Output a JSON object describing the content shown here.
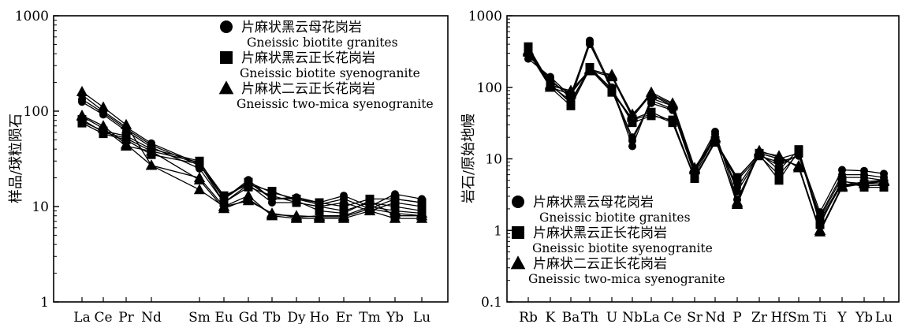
{
  "chart_data": [
    {
      "type": "line",
      "ylabel": "样品/球粒陨石",
      "yscale": "log",
      "ylim": [
        1,
        1000
      ],
      "yticks": [
        1,
        10,
        100,
        1000
      ],
      "categories": [
        "La",
        "Ce",
        "Pr",
        "Nd",
        "Sm",
        "Eu",
        "Gd",
        "Tb",
        "Dy",
        "Ho",
        "Er",
        "Tm",
        "Yb",
        "Lu"
      ],
      "grid": false,
      "legend_position": "top-right",
      "legend": [
        {
          "marker": "circle",
          "cn": "片麻状黑云母花岗岩",
          "en": "Gneissic biotite granites"
        },
        {
          "marker": "square",
          "cn": "片麻状黑云正长花岗岩",
          "en": "Gneissic biotite syenogranite"
        },
        {
          "marker": "triangle",
          "cn": "片麻状二云正长花岗岩",
          "en": "Gneissic two-mica syenogranite"
        }
      ],
      "series": [
        {
          "marker": "circle",
          "values": [
            148,
            100,
            68,
            46,
            28,
            12,
            19,
            12,
            12.5,
            11,
            13,
            10,
            13.5,
            12
          ]
        },
        {
          "marker": "circle",
          "values": [
            125,
            92,
            62,
            42,
            25,
            11,
            17,
            11,
            11,
            10,
            11,
            9,
            11,
            10
          ]
        },
        {
          "marker": "circle",
          "values": [
            133,
            96,
            65,
            44,
            27,
            12.5,
            18,
            12,
            12,
            10.5,
            12,
            9.5,
            12,
            11
          ]
        },
        {
          "marker": "square",
          "values": [
            78,
            62,
            55,
            40,
            30,
            12,
            18,
            14,
            12,
            11,
            10,
            12,
            12,
            11
          ]
        },
        {
          "marker": "square",
          "values": [
            75,
            58,
            50,
            35,
            28,
            11,
            16,
            13,
            11,
            10,
            9,
            11,
            10,
            9
          ]
        },
        {
          "marker": "square",
          "values": [
            82,
            60,
            52,
            38,
            29,
            13,
            17,
            14.5,
            11.5,
            9,
            8.5,
            11.5,
            8,
            8
          ]
        },
        {
          "marker": "triangle",
          "values": [
            160,
            110,
            72,
            27,
            20,
            10,
            13,
            8,
            7.5,
            7.5,
            7.5,
            9,
            7.5,
            7.5
          ]
        },
        {
          "marker": "triangle",
          "values": [
            90,
            70,
            45,
            27,
            15,
            10,
            11.5,
            8.5,
            7.7,
            8,
            8,
            10,
            9,
            8.5
          ]
        },
        {
          "marker": "triangle",
          "values": [
            88,
            66,
            43,
            38,
            19,
            9.5,
            12,
            8.2,
            8,
            7.8,
            7.8,
            9.5,
            8.5,
            8
          ]
        }
      ]
    },
    {
      "type": "line",
      "ylabel": "岩石/原始地幔",
      "yscale": "log",
      "ylim": [
        0.1,
        1000
      ],
      "yticks": [
        0.1,
        1,
        10,
        100,
        1000
      ],
      "categories": [
        "Rb",
        "K",
        "Ba",
        "Th",
        "U",
        "Nb",
        "La",
        "Ce",
        "Sr",
        "Nd",
        "P",
        "Zr",
        "Hf",
        "Sm",
        "Ti",
        "Y",
        "Yb",
        "Lu"
      ],
      "grid": false,
      "legend_position": "bottom-left",
      "legend": [
        {
          "marker": "circle",
          "cn": "片麻状黑云母花岗岩",
          "en": "Gneissic biotite granites"
        },
        {
          "marker": "square",
          "cn": "片麻状黑云正长花岗岩",
          "en": "Gneissic biotite syenogranite"
        },
        {
          "marker": "triangle",
          "cn": "片麻状二云正长花岗岩",
          "en": "Gneissic two-mica syenogranite"
        }
      ],
      "series": [
        {
          "marker": "circle",
          "values": [
            250,
            140,
            75,
            450,
            100,
            15,
            70,
            55,
            7,
            24,
            2.7,
            12,
            10,
            12,
            1.8,
            7,
            6.8,
            6.2
          ]
        },
        {
          "marker": "circle",
          "values": [
            300,
            120,
            80,
            420,
            90,
            18,
            65,
            50,
            6.5,
            22,
            3.5,
            11,
            9,
            11,
            1.6,
            6,
            6,
            5.5
          ]
        },
        {
          "marker": "circle",
          "values": [
            280,
            130,
            70,
            400,
            95,
            20,
            60,
            48,
            6,
            20,
            4,
            11.5,
            8,
            11.5,
            1.5,
            5.5,
            5.5,
            5
          ]
        },
        {
          "marker": "square",
          "values": [
            370,
            110,
            60,
            190,
            95,
            32,
            40,
            35,
            5.5,
            18,
            5.5,
            11.5,
            5,
            13,
            1.2,
            5,
            4,
            4
          ]
        },
        {
          "marker": "square",
          "values": [
            340,
            100,
            55,
            180,
            85,
            35,
            42,
            32,
            5.3,
            17,
            5,
            11,
            6,
            12,
            1.3,
            4.5,
            4.2,
            4.3
          ]
        },
        {
          "marker": "square",
          "values": [
            360,
            105,
            65,
            185,
            90,
            36,
            45,
            33,
            5.5,
            18,
            5.3,
            12,
            7,
            13.5,
            1.4,
            4.8,
            4.5,
            4.5
          ]
        },
        {
          "marker": "triangle",
          "values": [
            320,
            105,
            90,
            175,
            150,
            40,
            85,
            60,
            7.5,
            20,
            2.3,
            12.5,
            11,
            7.5,
            0.95,
            4,
            4.5,
            4.8
          ]
        },
        {
          "marker": "triangle",
          "values": [
            330,
            110,
            85,
            170,
            140,
            38,
            80,
            58,
            7,
            19,
            2.5,
            12,
            10,
            8,
            1.0,
            4.2,
            4.8,
            5
          ]
        },
        {
          "marker": "triangle",
          "values": [
            310,
            100,
            80,
            180,
            145,
            42,
            78,
            55,
            7.3,
            20,
            2.4,
            13,
            10.5,
            7.8,
            1.0,
            4.1,
            4.6,
            4.9
          ]
        }
      ]
    }
  ]
}
